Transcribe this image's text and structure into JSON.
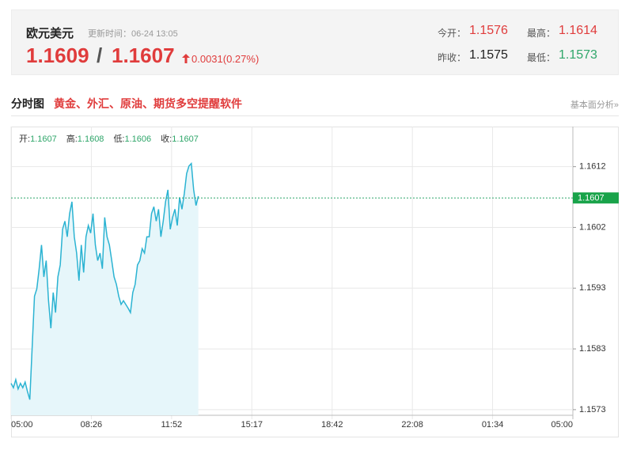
{
  "header": {
    "title": "欧元美元",
    "update": "更新时间：06-24 13:05",
    "bid": "1.1609",
    "sep": "/",
    "ask": "1.1607",
    "change": "0.0031(0.27%)",
    "stats": [
      {
        "label": "今开：",
        "value": "1.1576"
      },
      {
        "label": "最高：",
        "value": "1.1614"
      },
      {
        "label": "昨收：",
        "value": "1.1575"
      },
      {
        "label": "最低：",
        "value": "1.1573"
      }
    ]
  },
  "section": {
    "title": "分时图",
    "link": "黄金、外汇、原油、期货多空提醒软件",
    "more": "基本面分析»"
  },
  "chart_data": {
    "type": "line",
    "info": [
      {
        "label": "开:",
        "value": "1.1607"
      },
      {
        "label": "高:",
        "value": "1.1608"
      },
      {
        "label": "低:",
        "value": "1.1606"
      },
      {
        "label": "收:",
        "value": "1.1607"
      }
    ],
    "last_price": 1.1607,
    "grid": true,
    "xlim": [
      0,
      1440
    ],
    "xticks": [
      {
        "value": 0,
        "label": "05:00"
      },
      {
        "value": 205.7,
        "label": "08:26"
      },
      {
        "value": 411.4,
        "label": "11:52"
      },
      {
        "value": 617.1,
        "label": "15:17"
      },
      {
        "value": 822.9,
        "label": "18:42"
      },
      {
        "value": 1028.6,
        "label": "22:08"
      },
      {
        "value": 1234.3,
        "label": "01:34"
      },
      {
        "value": 1440,
        "label": "05:00"
      }
    ],
    "ylim": [
      1.15723,
      1.16184
    ],
    "yticks": [
      {
        "value": 1.1612,
        "label": "1.1612"
      },
      {
        "value": 1.16023,
        "label": "1.1602"
      },
      {
        "value": 1.15926,
        "label": "1.1593"
      },
      {
        "value": 1.15829,
        "label": "1.1583"
      },
      {
        "value": 1.15732,
        "label": "1.1573"
      }
    ],
    "x": [
      0,
      6,
      12,
      18,
      24,
      30,
      36,
      42,
      48,
      54,
      60,
      66,
      72,
      78,
      84,
      90,
      96,
      102,
      108,
      114,
      120,
      126,
      132,
      138,
      144,
      150,
      156,
      162,
      168,
      174,
      180,
      186,
      192,
      198,
      204,
      210,
      216,
      222,
      228,
      234,
      240,
      246,
      252,
      258,
      264,
      270,
      276,
      282,
      288,
      294,
      300,
      306,
      312,
      318,
      324,
      330,
      336,
      342,
      348,
      354,
      360,
      366,
      372,
      378,
      384,
      390,
      396,
      402,
      408,
      414,
      420,
      426,
      432,
      438,
      444,
      450,
      456,
      462,
      468,
      474,
      480
    ],
    "series": [
      {
        "color": "#2bb3d2",
        "values": [
          1.15774,
          1.15767,
          1.1578,
          1.15765,
          1.15774,
          1.15767,
          1.15776,
          1.15761,
          1.15748,
          1.15831,
          1.15913,
          1.15925,
          1.15957,
          1.15995,
          1.15944,
          1.1597,
          1.15906,
          1.15862,
          1.15919,
          1.15887,
          1.15944,
          1.15963,
          1.1602,
          1.16033,
          1.16008,
          1.16045,
          1.16064,
          1.16008,
          1.15982,
          1.15938,
          1.15995,
          1.15951,
          1.16008,
          1.16026,
          1.16014,
          1.16045,
          1.15995,
          1.1597,
          1.15982,
          1.15957,
          1.16039,
          1.16008,
          1.15995,
          1.1597,
          1.15944,
          1.15932,
          1.15913,
          1.159,
          1.15906,
          1.159,
          1.15894,
          1.15887,
          1.15919,
          1.15932,
          1.15963,
          1.1597,
          1.15989,
          1.15982,
          1.16008,
          1.16008,
          1.16045,
          1.16056,
          1.16033,
          1.16052,
          1.16008,
          1.16033,
          1.16064,
          1.16083,
          1.1602,
          1.16039,
          1.16052,
          1.16026,
          1.16071,
          1.16052,
          1.16077,
          1.16109,
          1.16121,
          1.16125,
          1.16083,
          1.16058,
          1.16073
        ]
      }
    ]
  }
}
